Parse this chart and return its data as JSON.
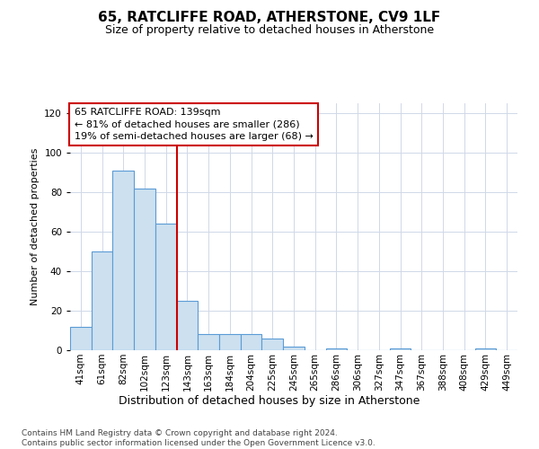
{
  "title": "65, RATCLIFFE ROAD, ATHERSTONE, CV9 1LF",
  "subtitle": "Size of property relative to detached houses in Atherstone",
  "xlabel": "Distribution of detached houses by size in Atherstone",
  "ylabel": "Number of detached properties",
  "bar_labels": [
    "41sqm",
    "61sqm",
    "82sqm",
    "102sqm",
    "123sqm",
    "143sqm",
    "163sqm",
    "184sqm",
    "204sqm",
    "225sqm",
    "245sqm",
    "265sqm",
    "286sqm",
    "306sqm",
    "327sqm",
    "347sqm",
    "367sqm",
    "388sqm",
    "408sqm",
    "429sqm",
    "449sqm"
  ],
  "bar_values": [
    12,
    50,
    91,
    82,
    64,
    25,
    8,
    8,
    8,
    6,
    2,
    0,
    1,
    0,
    0,
    1,
    0,
    0,
    0,
    1,
    0
  ],
  "bar_color": "#cce0f0",
  "bar_edge_color": "#5b9bd5",
  "ylim": [
    0,
    125
  ],
  "yticks": [
    0,
    20,
    40,
    60,
    80,
    100,
    120
  ],
  "vline_x_index": 5,
  "vline_color": "#cc0000",
  "annotation_text": "65 RATCLIFFE ROAD: 139sqm\n← 81% of detached houses are smaller (286)\n19% of semi-detached houses are larger (68) →",
  "annotation_box_color": "#ffffff",
  "annotation_box_edge": "#cc0000",
  "footer_text": "Contains HM Land Registry data © Crown copyright and database right 2024.\nContains public sector information licensed under the Open Government Licence v3.0.",
  "background_color": "#ffffff",
  "grid_color": "#d0d8e8",
  "title_fontsize": 11,
  "subtitle_fontsize": 9,
  "ylabel_fontsize": 8,
  "xlabel_fontsize": 9,
  "tick_fontsize": 7.5,
  "annotation_fontsize": 8,
  "footer_fontsize": 6.5
}
